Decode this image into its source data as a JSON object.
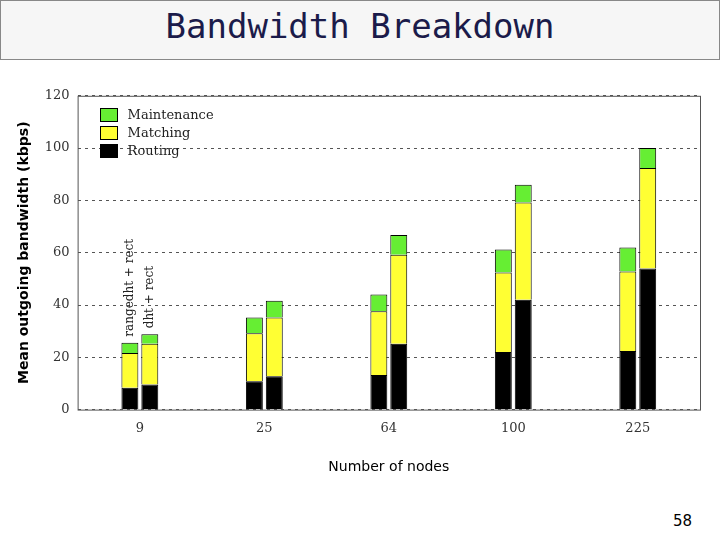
{
  "chart_data": {
    "type": "bar",
    "title": "Bandwidth Breakdown",
    "x_label": "Number of nodes",
    "y_label": "Mean outgoing bandwidth (kbps)",
    "categories": [
      "9",
      "25",
      "64",
      "100",
      "225"
    ],
    "bar_groups": [
      "rangedht + rect",
      "dht + rect"
    ],
    "series": [
      {
        "name": "Routing",
        "color": "#000000",
        "values": [
          [
            8.4,
            9.6
          ],
          [
            10.8,
            12.8
          ],
          [
            13.2,
            25.2
          ],
          [
            22,
            42
          ],
          [
            22.4,
            54
          ]
        ]
      },
      {
        "name": "Matching",
        "color": "#ffff33",
        "values": [
          [
            13.2,
            15.6
          ],
          [
            18.4,
            22.4
          ],
          [
            24.4,
            34
          ],
          [
            30.4,
            37.2
          ],
          [
            30.4,
            38.4
          ]
        ]
      },
      {
        "name": "Maintenance",
        "color": "#66ee33",
        "values": [
          [
            4,
            3.6
          ],
          [
            6,
            6.4
          ],
          [
            6.4,
            7.6
          ],
          [
            8.8,
            6.8
          ],
          [
            9.2,
            7.6
          ]
        ]
      }
    ],
    "stacked": true,
    "ylim": [
      0,
      120
    ],
    "yticks": [
      0,
      20,
      40,
      60,
      80,
      100,
      120
    ],
    "grid": true,
    "legend": "top-left"
  },
  "page_number": "58"
}
